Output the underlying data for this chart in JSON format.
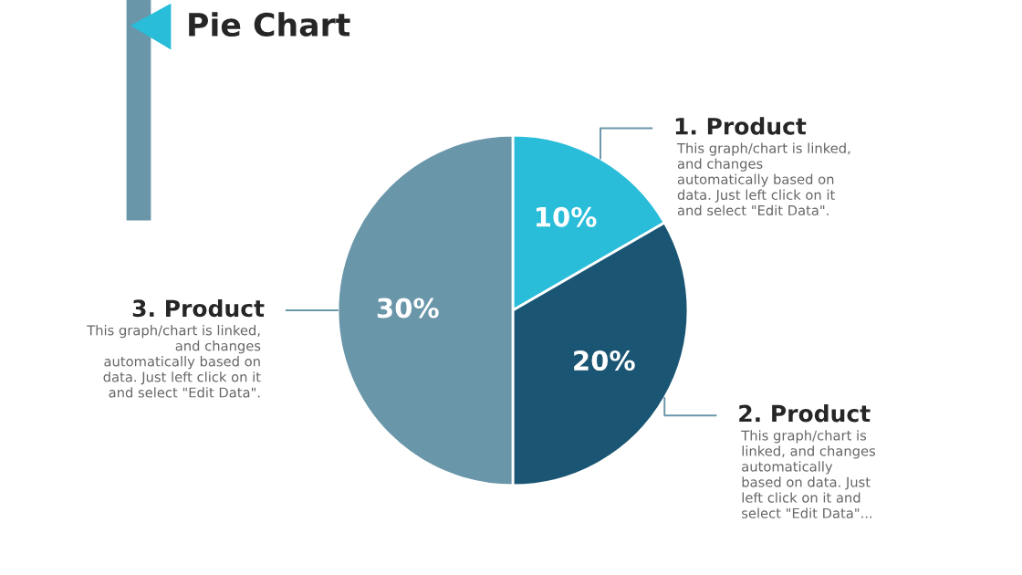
{
  "chart_data": {
    "type": "pie",
    "title": "Pie Chart",
    "categories": [
      "1. Product",
      "2. Product",
      "3. Product"
    ],
    "values": [
      10,
      20,
      30
    ],
    "value_labels": [
      "10%",
      "20%",
      "30%"
    ],
    "colors": [
      "#29bdd9",
      "#1a5673",
      "#6a96a9"
    ],
    "annotations": [
      "This graph/chart is linked,\nand changes\nautomatically based on\ndata. Just left click on it\nand select \"Edit Data\".",
      "This graph/chart is\nlinked, and changes\nautomatically\nbased on data. Just\nleft click on it and\nselect \"Edit Data\"...",
      "This graph/chart is linked,\nand changes\nautomatically based on\ndata. Just left click on it\nand select \"Edit Data\"."
    ]
  }
}
